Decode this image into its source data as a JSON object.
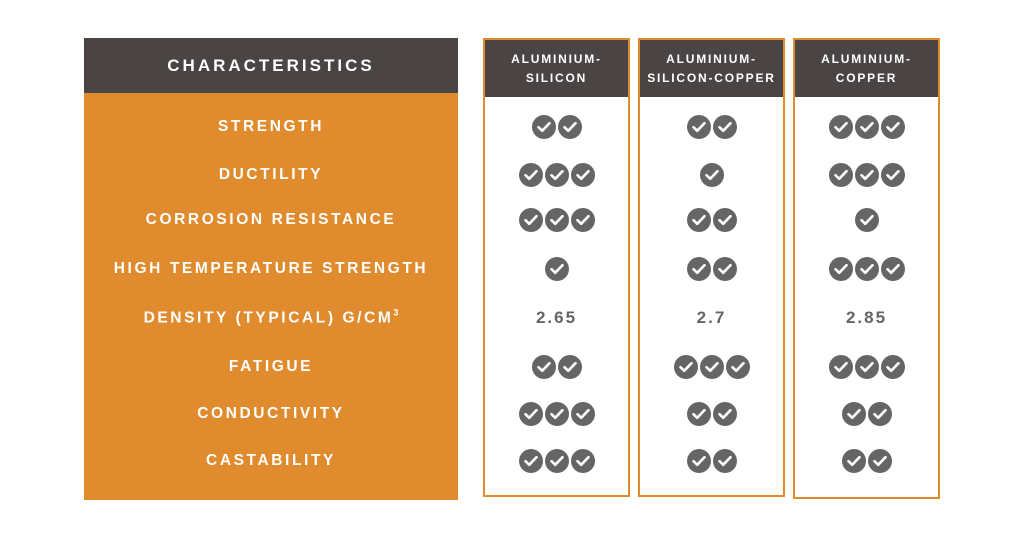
{
  "characteristics_header": "CHARACTERISTICS",
  "rows": [
    {
      "label": "STRENGTH"
    },
    {
      "label": "DUCTILITY"
    },
    {
      "label": "CORROSION RESISTANCE"
    },
    {
      "label": "HIGH TEMPERATURE STRENGTH"
    },
    {
      "label": "DENSITY (TYPICAL) G/CM",
      "sup": "3"
    },
    {
      "label": "FATIGUE"
    },
    {
      "label": "CONDUCTIVITY"
    },
    {
      "label": "CASTABILITY"
    }
  ],
  "alloys": [
    {
      "line1": "ALUMINIUM-",
      "line2": "SILICON",
      "ratings": [
        2,
        3,
        3,
        1,
        "2.65",
        2,
        3,
        3
      ]
    },
    {
      "line1": "ALUMINIUM-",
      "line2": "SILICON-COPPER",
      "ratings": [
        2,
        1,
        2,
        2,
        "2.7",
        3,
        2,
        2
      ]
    },
    {
      "line1": "ALUMINIUM-",
      "line2": "COPPER",
      "ratings": [
        3,
        3,
        1,
        3,
        "2.85",
        3,
        2,
        2
      ]
    }
  ],
  "colors": {
    "accent": "#e08c2e",
    "header": "#4a4444",
    "check": "#666464"
  },
  "icon": "check-circle-icon"
}
